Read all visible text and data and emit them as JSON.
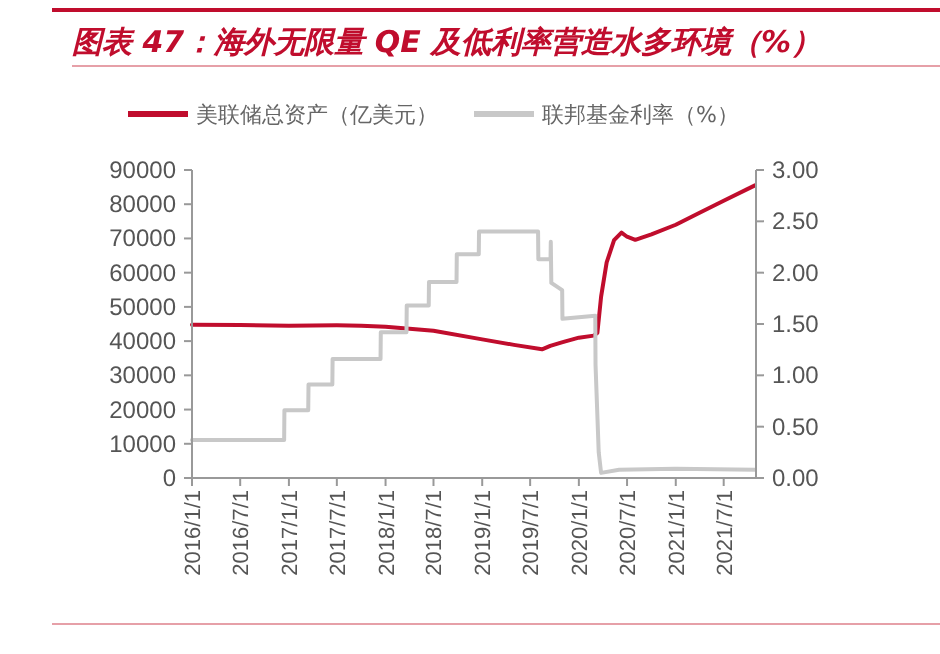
{
  "chart_data": {
    "type": "line",
    "title": "图表 47：海外无限量 QE 及低利率营造水多环境（%）",
    "legend": "top",
    "grid": false,
    "xlim": [
      "2016-01-01",
      "2021-10-31"
    ],
    "xticks": [
      {
        "value": "2016-01-01",
        "label": "2016/1/1"
      },
      {
        "value": "2016-07-01",
        "label": "2016/7/1"
      },
      {
        "value": "2017-01-01",
        "label": "2017/1/1"
      },
      {
        "value": "2017-07-01",
        "label": "2017/7/1"
      },
      {
        "value": "2018-01-01",
        "label": "2018/1/1"
      },
      {
        "value": "2018-07-01",
        "label": "2018/7/1"
      },
      {
        "value": "2019-01-01",
        "label": "2019/1/1"
      },
      {
        "value": "2019-07-01",
        "label": "2019/7/1"
      },
      {
        "value": "2020-01-01",
        "label": "2020/1/1"
      },
      {
        "value": "2020-07-01",
        "label": "2020/7/1"
      },
      {
        "value": "2021-01-01",
        "label": "2021/1/1"
      },
      {
        "value": "2021-07-01",
        "label": "2021/7/1"
      }
    ],
    "ylim": [
      0,
      90000
    ],
    "yticks": [
      0,
      10000,
      20000,
      30000,
      40000,
      50000,
      60000,
      70000,
      80000,
      90000
    ],
    "y2lim": [
      0,
      3
    ],
    "y2ticks": [
      {
        "value": 0,
        "label": "0.00"
      },
      {
        "value": 0.5,
        "label": "0.50"
      },
      {
        "value": 1,
        "label": "1.00"
      },
      {
        "value": 1.5,
        "label": "1.50"
      },
      {
        "value": 2,
        "label": "2.00"
      },
      {
        "value": 2.5,
        "label": "2.50"
      },
      {
        "value": 3,
        "label": "3.00"
      }
    ],
    "series": [
      {
        "name": "美联储总资产（亿美元）",
        "color": "#c00d2d",
        "x": [
          "2016-01-01",
          "2016-07-01",
          "2017-01-01",
          "2017-07-01",
          "2017-10-01",
          "2018-01-01",
          "2018-07-01",
          "2019-01-01",
          "2019-05-01",
          "2019-08-15",
          "2019-09-15",
          "2019-11-01",
          "2020-01-01",
          "2020-02-26",
          "2020-03-11",
          "2020-03-25",
          "2020-04-15",
          "2020-05-13",
          "2020-06-10",
          "2020-07-01",
          "2020-08-01",
          "2020-10-01",
          "2021-01-01",
          "2021-04-01",
          "2021-07-01",
          "2021-10-27"
        ],
        "values": [
          44800,
          44700,
          44500,
          44600,
          44500,
          44200,
          43000,
          40500,
          38900,
          37600,
          38600,
          39700,
          41000,
          41600,
          42400,
          53000,
          63000,
          69500,
          71700,
          70500,
          69600,
          71200,
          74000,
          77500,
          81000,
          85500
        ]
      },
      {
        "name": "联邦基金利率（%）",
        "color": "#c8c8c8",
        "axis": "y2",
        "x": [
          "2016-01-01",
          "2016-12-14",
          "2016-12-15",
          "2017-03-15",
          "2017-03-16",
          "2017-06-14",
          "2017-06-15",
          "2017-12-13",
          "2017-12-14",
          "2018-03-21",
          "2018-03-22",
          "2018-06-13",
          "2018-06-14",
          "2018-09-26",
          "2018-09-27",
          "2018-12-19",
          "2018-12-20",
          "2019-07-31",
          "2019-08-01",
          "2019-09-16",
          "2019-09-17",
          "2019-09-19",
          "2019-10-30",
          "2019-10-31",
          "2020-03-03",
          "2020-03-04",
          "2020-03-16",
          "2020-03-25",
          "2020-06-01",
          "2021-01-01",
          "2021-10-27"
        ],
        "values": [
          0.37,
          0.37,
          0.66,
          0.66,
          0.91,
          0.91,
          1.16,
          1.16,
          1.42,
          1.42,
          1.68,
          1.68,
          1.91,
          1.91,
          2.18,
          2.18,
          2.4,
          2.4,
          2.13,
          2.13,
          2.3,
          1.9,
          1.83,
          1.55,
          1.58,
          1.1,
          0.25,
          0.05,
          0.08,
          0.09,
          0.08
        ]
      }
    ]
  }
}
